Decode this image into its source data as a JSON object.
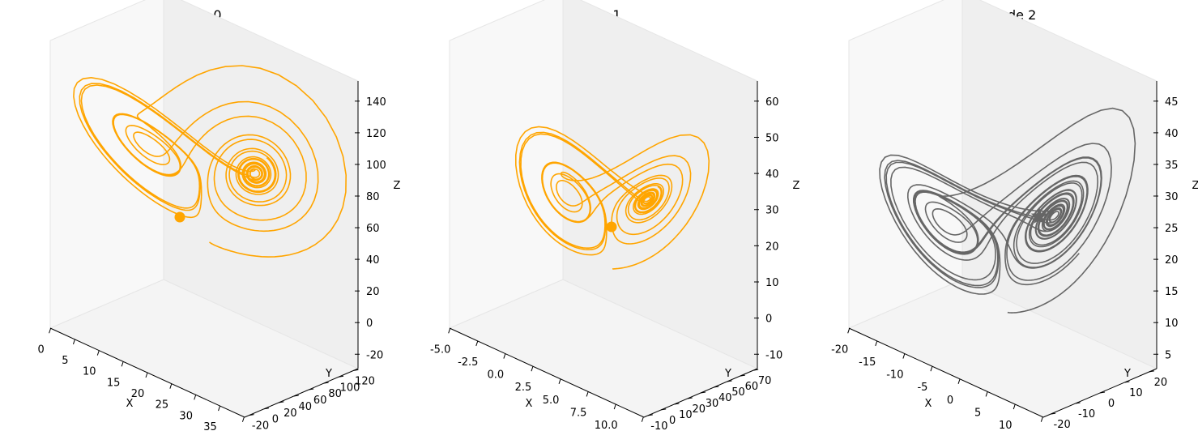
{
  "chart_data": [
    {
      "type": "line-3d",
      "title": "Node 0",
      "xlabel": "X",
      "ylabel": "Y",
      "zlabel": "Z",
      "xticks": [
        "0",
        "5",
        "10",
        "15",
        "20",
        "25",
        "30",
        "35",
        "40"
      ],
      "yticks": [
        "-20",
        "0",
        "20",
        "40",
        "60",
        "80",
        "100",
        "120"
      ],
      "zticks": [
        "-20",
        "0",
        "20",
        "40",
        "60",
        "80",
        "100",
        "120",
        "140"
      ],
      "xlim": [
        0,
        40
      ],
      "ylim": [
        -30,
        125
      ],
      "zlim": [
        -25,
        150
      ],
      "color": "#ffa500",
      "marker": "circle",
      "marker_point": {
        "x": 17,
        "y": 40,
        "z": 35
      }
    },
    {
      "type": "line-3d",
      "title": "Node 1",
      "xlabel": "X",
      "ylabel": "Y",
      "zlabel": "Z",
      "xticks": [
        "-5.0",
        "-2.5",
        "0.0",
        "2.5",
        "5.0",
        "7.5",
        "10.0",
        "12.5"
      ],
      "yticks": [
        "-10",
        "0",
        "10",
        "20",
        "30",
        "40",
        "50",
        "60",
        "70"
      ],
      "zticks": [
        "-10",
        "0",
        "10",
        "20",
        "30",
        "40",
        "50",
        "60"
      ],
      "xlim": [
        -6,
        13
      ],
      "ylim": [
        -14,
        74
      ],
      "zlim": [
        -12,
        66
      ],
      "color": "#ffa500",
      "marker": "circle",
      "marker_point": {
        "x": 5,
        "y": 30,
        "z": 20
      }
    },
    {
      "type": "line-3d",
      "title": "Root node 2",
      "xlabel": "X",
      "ylabel": "Y",
      "zlabel": "Z",
      "xticks": [
        "-20",
        "-15",
        "-10",
        "-5",
        "0",
        "5",
        "10",
        "15"
      ],
      "yticks": [
        "-20",
        "-10",
        "0",
        "10",
        "20"
      ],
      "zticks": [
        "5",
        "10",
        "15",
        "20",
        "25",
        "30",
        "35",
        "40",
        "45"
      ],
      "xlim": [
        -21,
        19
      ],
      "ylim": [
        -26,
        27
      ],
      "zlim": [
        3,
        47
      ],
      "color": "#666666",
      "marker": "star",
      "marker_point": {
        "x": 8,
        "y": 8,
        "z": 23
      }
    }
  ]
}
